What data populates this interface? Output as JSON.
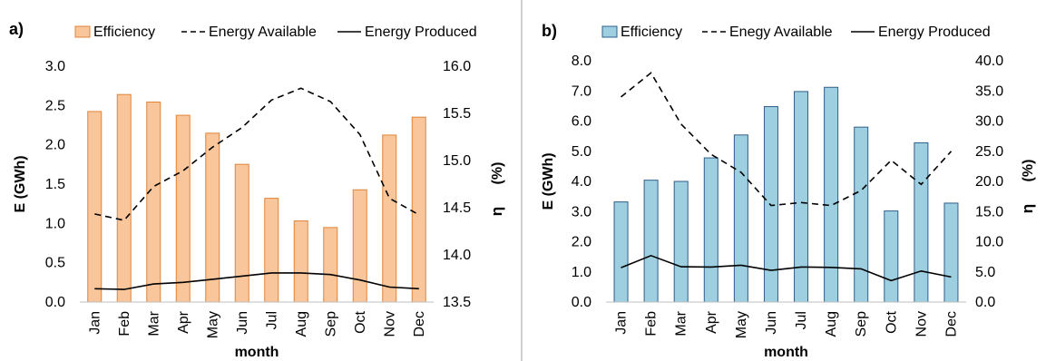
{
  "chart_data": [
    {
      "panel_label": "a)",
      "type": "bar",
      "categories": [
        "Jan",
        "Feb",
        "Mar",
        "Apr",
        "May",
        "Jun",
        "Jul",
        "Aug",
        "Sep",
        "Oct",
        "Nov",
        "Dec"
      ],
      "xlabel": "month",
      "ylabel": "E (GWh)",
      "y2label_symbol": "η",
      "y2label_unit": "(%)",
      "ylim": [
        0,
        3.0
      ],
      "ytick_labels": [
        "0.0",
        "0.5",
        "1.0",
        "1.5",
        "2.0",
        "2.5",
        "3.0"
      ],
      "y2lim": [
        13.5,
        16.0
      ],
      "y2tick_labels": [
        "13.5",
        "14.0",
        "14.5",
        "15.0",
        "15.5",
        "16.0"
      ],
      "legend": [
        "Efficiency",
        "Energy Available",
        "Energy Produced"
      ],
      "legend_position": "top",
      "bar_color": "#f9c59a",
      "bar_edge": "#e0843a",
      "grid": false,
      "series": [
        {
          "name": "Efficiency",
          "axis": "right",
          "kind": "bar",
          "values": [
            15.52,
            15.7,
            15.62,
            15.48,
            15.29,
            14.96,
            14.6,
            14.36,
            14.29,
            14.69,
            15.27,
            15.46
          ]
        },
        {
          "name": "Energy Available",
          "axis": "left",
          "kind": "dashed-line",
          "values": [
            1.12,
            1.04,
            1.47,
            1.67,
            1.97,
            2.22,
            2.57,
            2.72,
            2.55,
            2.13,
            1.32,
            1.11
          ]
        },
        {
          "name": "Energy Produced",
          "axis": "left",
          "kind": "line",
          "values": [
            0.17,
            0.16,
            0.23,
            0.25,
            0.29,
            0.33,
            0.37,
            0.37,
            0.35,
            0.28,
            0.19,
            0.17
          ]
        }
      ]
    },
    {
      "panel_label": "b)",
      "type": "bar",
      "categories": [
        "Jan",
        "Feb",
        "Mar",
        "Apr",
        "May",
        "Jun",
        "Jul",
        "Aug",
        "Sep",
        "Oct",
        "Nov",
        "Dec"
      ],
      "xlabel": "month",
      "ylabel": "E (GWh)",
      "y2label_symbol": "η",
      "y2label_unit": "(%)",
      "ylim": [
        0,
        8.0
      ],
      "ytick_labels": [
        "0.0",
        "1.0",
        "2.0",
        "3.0",
        "4.0",
        "5.0",
        "6.0",
        "7.0",
        "8.0"
      ],
      "y2lim": [
        0,
        40.0
      ],
      "y2tick_labels": [
        "0.0",
        "5.0",
        "10.0",
        "15.0",
        "20.0",
        "25.0",
        "30.0",
        "35.0",
        "40.0"
      ],
      "legend": [
        "Efficiency",
        "Enegy Available",
        "Energy Produced"
      ],
      "legend_position": "top",
      "bar_color": "#9dcfe0",
      "bar_edge": "#2f5f8a",
      "grid": false,
      "series": [
        {
          "name": "Efficiency",
          "axis": "right",
          "kind": "bar",
          "values": [
            16.6,
            20.2,
            20.0,
            23.9,
            27.7,
            32.4,
            34.9,
            35.6,
            29.0,
            15.1,
            26.4,
            16.4
          ]
        },
        {
          "name": "Enegy Available",
          "axis": "left",
          "kind": "dashed-line",
          "values": [
            6.8,
            7.6,
            5.9,
            4.9,
            4.3,
            3.2,
            3.3,
            3.2,
            3.7,
            4.7,
            3.9,
            5.0
          ]
        },
        {
          "name": "Energy Produced",
          "axis": "left",
          "kind": "line",
          "values": [
            1.14,
            1.54,
            1.17,
            1.16,
            1.22,
            1.05,
            1.16,
            1.15,
            1.1,
            0.71,
            1.03,
            0.83
          ]
        }
      ]
    }
  ]
}
